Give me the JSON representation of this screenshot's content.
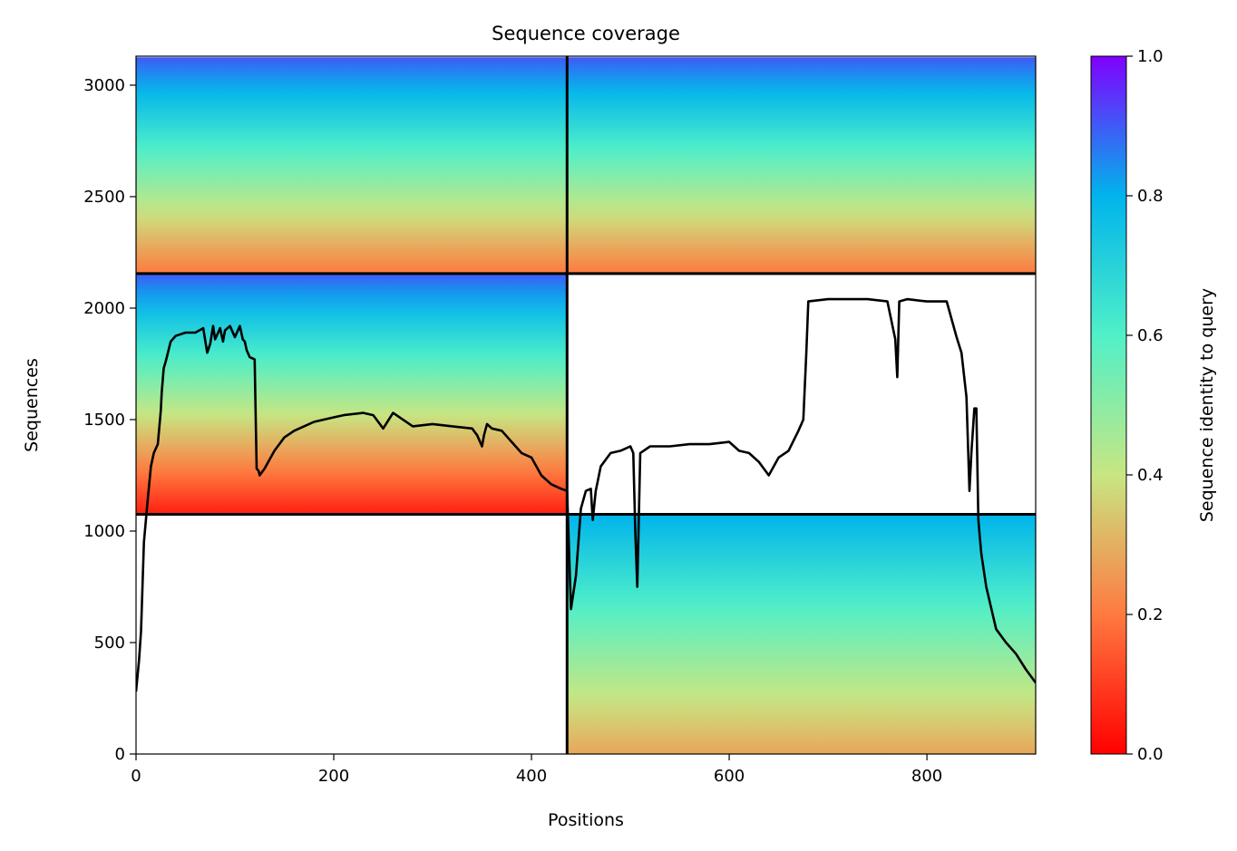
{
  "chart_data": {
    "type": "heatmap",
    "title": "Sequence coverage",
    "xlabel": "Positions",
    "ylabel": "Sequences",
    "colorbar_label": "Sequence identity to query",
    "xlim": [
      0,
      910
    ],
    "ylim": [
      0,
      3130
    ],
    "xticks": [
      0,
      200,
      400,
      600,
      800
    ],
    "yticks": [
      0,
      500,
      1000,
      1500,
      2000,
      2500,
      3000
    ],
    "colorbar_ticks": [
      "0.0",
      "0.2",
      "0.4",
      "0.6",
      "0.8",
      "1.0"
    ],
    "colormap": "rainbow_r",
    "colormap_stops": [
      "#ff0000",
      "#ff7a40",
      "#c8e682",
      "#50f0c8",
      "#00b4ec",
      "#8000ff"
    ],
    "domain_boundaries": {
      "x": [
        436
      ],
      "y": [
        1075,
        2155
      ]
    },
    "coverage_blocks": [
      {
        "x": [
          0,
          436
        ],
        "y": [
          2155,
          3125
        ],
        "identity_top": 0.9,
        "identity_bottom": 0.2
      },
      {
        "x": [
          436,
          910
        ],
        "y": [
          2155,
          3125
        ],
        "identity_top": 0.9,
        "identity_bottom": 0.2
      },
      {
        "x": [
          0,
          436
        ],
        "y": [
          1075,
          2155
        ],
        "identity_top": 0.9,
        "identity_bottom": 0.05
      },
      {
        "x": [
          436,
          910
        ],
        "y": [
          0,
          1075
        ],
        "identity_top": 0.8,
        "identity_bottom": 0.28
      }
    ],
    "series": [
      {
        "x": [
          0,
          3,
          5,
          8,
          12,
          15,
          18,
          22,
          25,
          26,
          28,
          30,
          35,
          40,
          50,
          60,
          68,
          72,
          75,
          78,
          80,
          85,
          88,
          90,
          95,
          100,
          105,
          108,
          110,
          112,
          115,
          120,
          122,
          124,
          125,
          130,
          140,
          150,
          160,
          170,
          180,
          190,
          200,
          210,
          230,
          240,
          250,
          260,
          280,
          300,
          320,
          340,
          345,
          350,
          352,
          355,
          360,
          370,
          380,
          390,
          400,
          410,
          420,
          430,
          436,
          440,
          445,
          450,
          455,
          460,
          462,
          465,
          470,
          480,
          490,
          500,
          503,
          505,
          507,
          510,
          520,
          540,
          560,
          580,
          600,
          610,
          620,
          630,
          640,
          650,
          660,
          670,
          675,
          678,
          680,
          700,
          720,
          740,
          760,
          768,
          770,
          772,
          780,
          800,
          820,
          830,
          835,
          840,
          843,
          845,
          848,
          850,
          852,
          855,
          860,
          870,
          880,
          890,
          900,
          910
        ],
        "y": [
          280,
          420,
          550,
          950,
          1150,
          1290,
          1350,
          1390,
          1540,
          1620,
          1730,
          1760,
          1850,
          1875,
          1890,
          1890,
          1910,
          1800,
          1840,
          1920,
          1860,
          1910,
          1850,
          1900,
          1920,
          1870,
          1920,
          1860,
          1850,
          1810,
          1780,
          1770,
          1280,
          1270,
          1250,
          1280,
          1360,
          1420,
          1450,
          1470,
          1490,
          1500,
          1510,
          1520,
          1530,
          1520,
          1460,
          1530,
          1470,
          1480,
          1470,
          1460,
          1430,
          1380,
          1430,
          1480,
          1460,
          1450,
          1400,
          1350,
          1330,
          1250,
          1210,
          1190,
          1180,
          650,
          800,
          1100,
          1180,
          1190,
          1050,
          1180,
          1290,
          1350,
          1360,
          1380,
          1350,
          1000,
          750,
          1350,
          1380,
          1380,
          1390,
          1390,
          1400,
          1360,
          1350,
          1310,
          1250,
          1330,
          1360,
          1450,
          1500,
          1800,
          2030,
          2040,
          2040,
          2040,
          2030,
          1860,
          1690,
          2030,
          2040,
          2030,
          2030,
          1870,
          1800,
          1600,
          1180,
          1350,
          1550,
          1550,
          1050,
          900,
          750,
          560,
          500,
          450,
          380,
          320
        ]
      }
    ]
  }
}
